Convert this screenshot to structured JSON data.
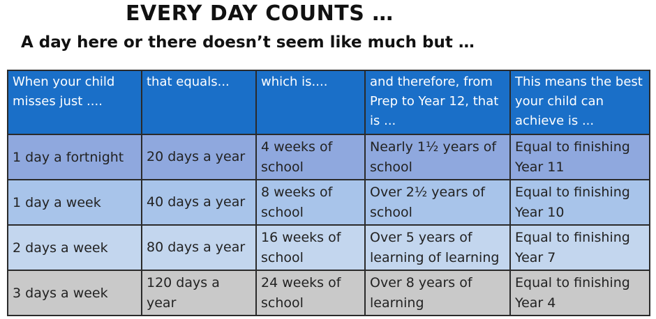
{
  "header": {
    "title": "EVERY DAY COUNTS …",
    "subtitle": "A day here or there doesn’t seem like much but …"
  },
  "table": {
    "columns": [
      "When your child misses just ....",
      "that equals...",
      "which is....",
      "and therefore, from Prep to Year 12, that is ...",
      "This means the best your child can achieve is ..."
    ],
    "rows": [
      [
        "1 day a fortnight",
        "20 days a year",
        "4 weeks of school",
        "Nearly 1½ years of school",
        "Equal to finishing Year 11"
      ],
      [
        "1 day a week",
        "40 days a year",
        "8 weeks of school",
        "Over  2½ years of school",
        "Equal to finishing Year 10"
      ],
      [
        "2 days a week",
        "80 days a year",
        "16 weeks of school",
        "Over 5 years of learning of learning",
        "Equal to finishing Year 7"
      ],
      [
        "3 days a week",
        "120 days a year",
        "24 weeks of school",
        "Over 8  years of learning",
        "Equal to finishing Year 4"
      ]
    ]
  }
}
